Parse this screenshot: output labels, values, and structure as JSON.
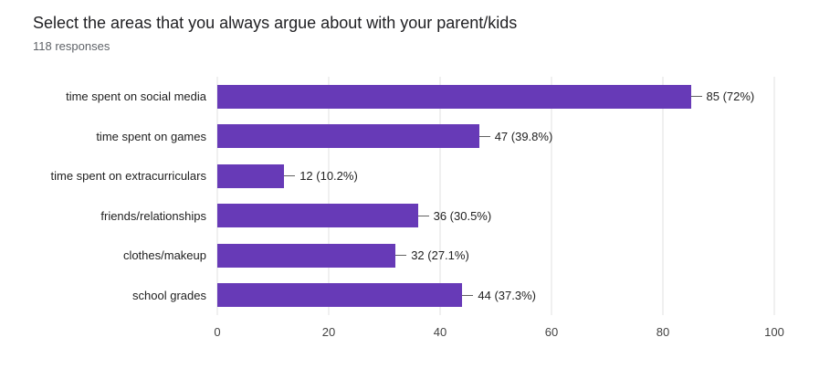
{
  "header": {
    "title": "Select the areas that you always argue about with your parent/kids",
    "subtitle": "118 responses"
  },
  "chart_data": {
    "type": "bar",
    "orientation": "horizontal",
    "title": "Select the areas that you always argue about with your parent/kids",
    "subtitle": "118 responses",
    "categories": [
      "time spent on social media",
      "time spent on games",
      "time spent on extracurriculars",
      "friends/relationships",
      "clothes/makeup",
      "school grades"
    ],
    "values": [
      85,
      47,
      12,
      36,
      32,
      44
    ],
    "value_labels": [
      "85 (72%)",
      "47 (39.8%)",
      "12 (10.2%)",
      "36 (30.5%)",
      "32 (27.1%)",
      "44 (37.3%)"
    ],
    "xlim": [
      0,
      100
    ],
    "x_ticks": [
      0,
      20,
      40,
      60,
      80,
      100
    ],
    "xlabel": "",
    "ylabel": "",
    "grid": true,
    "legend": false,
    "bar_color": "#673ab7",
    "gridline_color": "#e0e0e0"
  }
}
